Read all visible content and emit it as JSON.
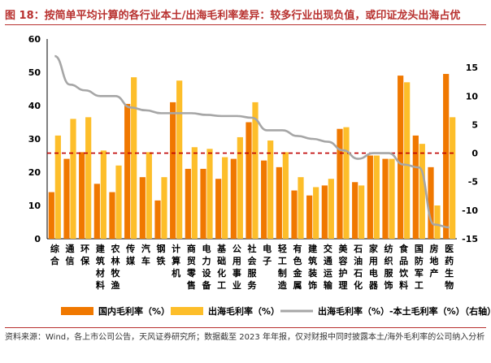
{
  "figure": {
    "title": "图 18：按简单平均计算的各行业本土/出海毛利率差异：较多行业出现负值，或印证龙头出海占优",
    "source": "资料来源：Wind，各上市公司公告，天风证券研究所；数据截至 2023 年年报，仅对财报中同时披露本土/海外毛利率的公司纳入分析"
  },
  "chart_data": {
    "type": "bar",
    "categories": [
      "综合",
      "通信",
      "环保",
      "建筑材料",
      "农林牧渔",
      "传媒",
      "汽车",
      "钢铁",
      "计算机",
      "商贸零售",
      "电力设备",
      "基础化工",
      "公用事业",
      "社会服务",
      "电子",
      "轻工制造",
      "有色金属",
      "建筑装饰",
      "交通运输",
      "美容护理",
      "石油石化",
      "家用电器",
      "纺织服饰",
      "食品饮料",
      "国防军工",
      "房地产",
      "医药生物"
    ],
    "series": [
      {
        "name": "国内毛利率（%）",
        "axis": "left",
        "values": [
          14,
          24,
          26,
          16.5,
          14,
          40.5,
          18.5,
          11.5,
          41,
          21,
          21,
          18,
          24,
          35,
          23.5,
          21.5,
          14.5,
          13,
          16,
          33,
          17,
          25,
          24,
          49,
          31,
          21.5,
          49.5
        ]
      },
      {
        "name": "出海毛利率（%）",
        "axis": "left",
        "values": [
          31,
          36,
          36.5,
          26.5,
          22,
          48.5,
          26,
          18.5,
          47.5,
          27.5,
          27,
          24.5,
          30.5,
          41,
          29.5,
          26,
          18.5,
          15.5,
          18,
          33.5,
          16,
          25,
          24,
          47,
          28.5,
          10,
          36.5
        ]
      },
      {
        "name": "出海毛利率（%）-本土毛利率（%）（右轴）",
        "axis": "right",
        "type": "line",
        "values": [
          17,
          12,
          11,
          10,
          10,
          8,
          7.5,
          7,
          7,
          7,
          6.7,
          6.5,
          6.5,
          6.2,
          4,
          4,
          3,
          2.5,
          2,
          0.5,
          -1,
          0,
          0,
          -2,
          -2.5,
          -12.5,
          -13
        ]
      }
    ],
    "ylim_left": [
      0,
      60
    ],
    "yticks_left": [
      "0",
      "10",
      "20",
      "30",
      "40",
      "50",
      "60"
    ],
    "ylim_right": [
      -15,
      20
    ],
    "yticks_right": [
      "-15",
      "-10",
      "-5",
      "0",
      "5",
      "10",
      "15"
    ],
    "reference_line": {
      "axis": "right",
      "value": 0,
      "style": "dashed",
      "color": "#c00000"
    },
    "legend_position": "bottom",
    "colors": {
      "domestic": "#f07800",
      "overseas": "#fdbe2a",
      "diff_line": "#a6a6a6",
      "zero_line": "#c00000",
      "title": "#b8312f"
    }
  }
}
